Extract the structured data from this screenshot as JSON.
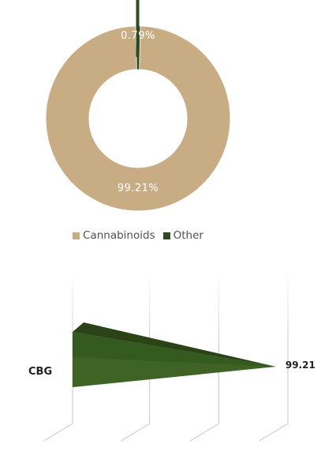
{
  "chart_data": [
    {
      "type": "pie",
      "variant": "donut",
      "categories": [
        "Cannabinoids",
        "Other"
      ],
      "values": [
        99.21,
        0.79
      ],
      "data_labels": [
        "99.21%",
        "0.79%"
      ],
      "colors": {
        "Cannabinoids": "#c8ad84",
        "Other": "#2d4a22"
      },
      "legend": {
        "position": "bottom",
        "entries": [
          "Cannabinoids",
          "Other"
        ]
      }
    },
    {
      "type": "bar",
      "orientation": "horizontal",
      "style": "3d-pyramid",
      "categories": [
        "CBG"
      ],
      "values": [
        99.21
      ],
      "data_labels": [
        "99.21"
      ],
      "xlim": [
        0,
        100
      ],
      "grid": true,
      "colors": {
        "bar": "#3f6324"
      }
    }
  ]
}
